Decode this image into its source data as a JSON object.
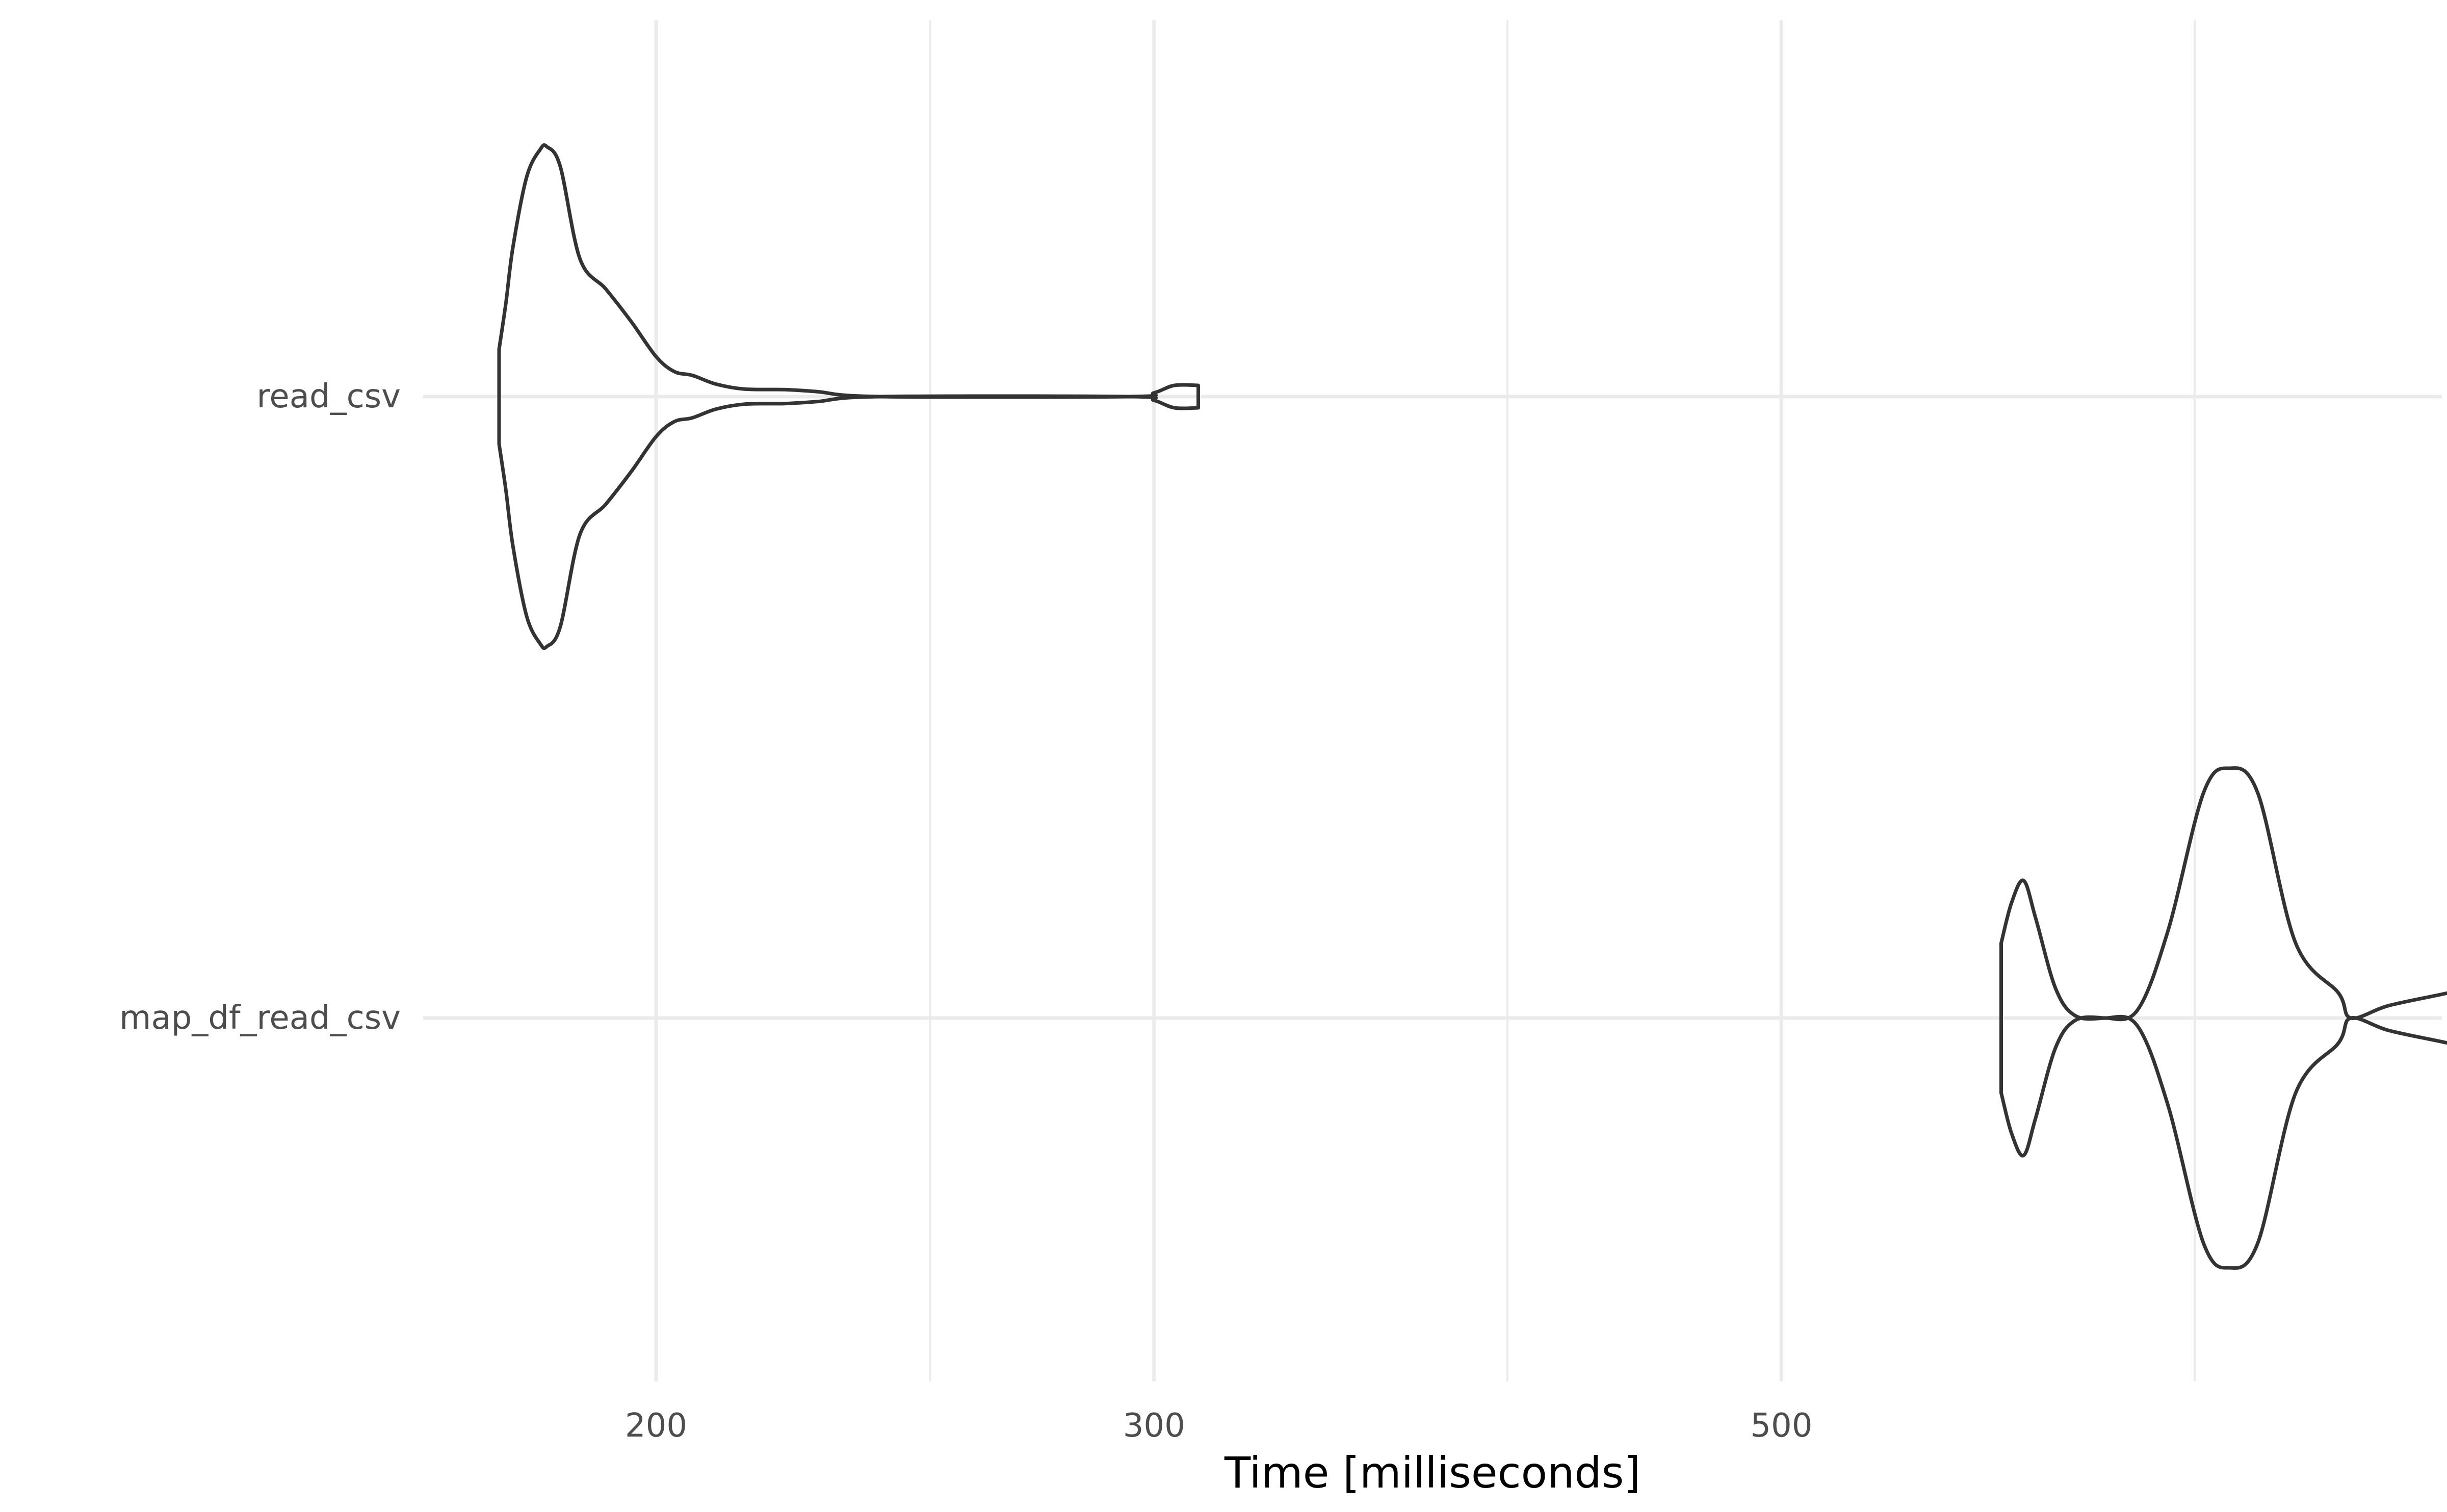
{
  "chart_data": {
    "type": "violin",
    "title": "",
    "xlabel": "Time [milliseconds]",
    "ylabel": "",
    "x_scale": "log10",
    "xlim": [
      126,
      950
    ],
    "grid": true,
    "legend": "none",
    "colors": {
      "outline": "#333333",
      "grid": "#ebebeb",
      "tick_text": "#4d4d4d",
      "title_text": "#000000",
      "background": "#ffffff"
    },
    "x_ticks": [
      {
        "value": 200,
        "label": "200"
      },
      {
        "value": 300,
        "label": "300"
      },
      {
        "value": 500,
        "label": "500"
      }
    ],
    "x_minor_grid": [
      250,
      400,
      700
    ],
    "categories": [
      "read_csv",
      "map_df_read_csv"
    ],
    "series": [
      {
        "name": "read_csv",
        "min": 176,
        "max": 311,
        "density": [
          [
            176,
            0.19
          ],
          [
            177,
            0.38
          ],
          [
            178,
            0.6
          ],
          [
            180,
            0.88
          ],
          [
            182,
            0.99
          ],
          [
            183,
            1.0
          ],
          [
            185,
            0.92
          ],
          [
            188,
            0.55
          ],
          [
            192,
            0.43
          ],
          [
            196,
            0.3
          ],
          [
            200,
            0.16
          ],
          [
            203,
            0.1
          ],
          [
            206,
            0.085
          ],
          [
            210,
            0.05
          ],
          [
            215,
            0.03
          ],
          [
            222,
            0.028
          ],
          [
            228,
            0.02
          ],
          [
            240,
            0.0
          ],
          [
            294,
            0.0
          ],
          [
            300,
            0.015
          ],
          [
            305,
            0.045
          ],
          [
            311,
            0.045
          ]
        ]
      },
      {
        "name": "map_df_read_csv",
        "min": 598,
        "max": 907,
        "density": [
          [
            598,
            0.3
          ],
          [
            603,
            0.46
          ],
          [
            609,
            0.55
          ],
          [
            615,
            0.4
          ],
          [
            625,
            0.12
          ],
          [
            635,
            0.01
          ],
          [
            650,
            0.0
          ],
          [
            668,
            0.03
          ],
          [
            685,
            0.35
          ],
          [
            705,
            0.9
          ],
          [
            720,
            1.0
          ],
          [
            737,
            0.9
          ],
          [
            760,
            0.3
          ],
          [
            787,
            0.1
          ],
          [
            795,
            0.0
          ],
          [
            820,
            0.05
          ],
          [
            860,
            0.1
          ],
          [
            880,
            0.13
          ],
          [
            907,
            0.14
          ]
        ]
      }
    ]
  }
}
